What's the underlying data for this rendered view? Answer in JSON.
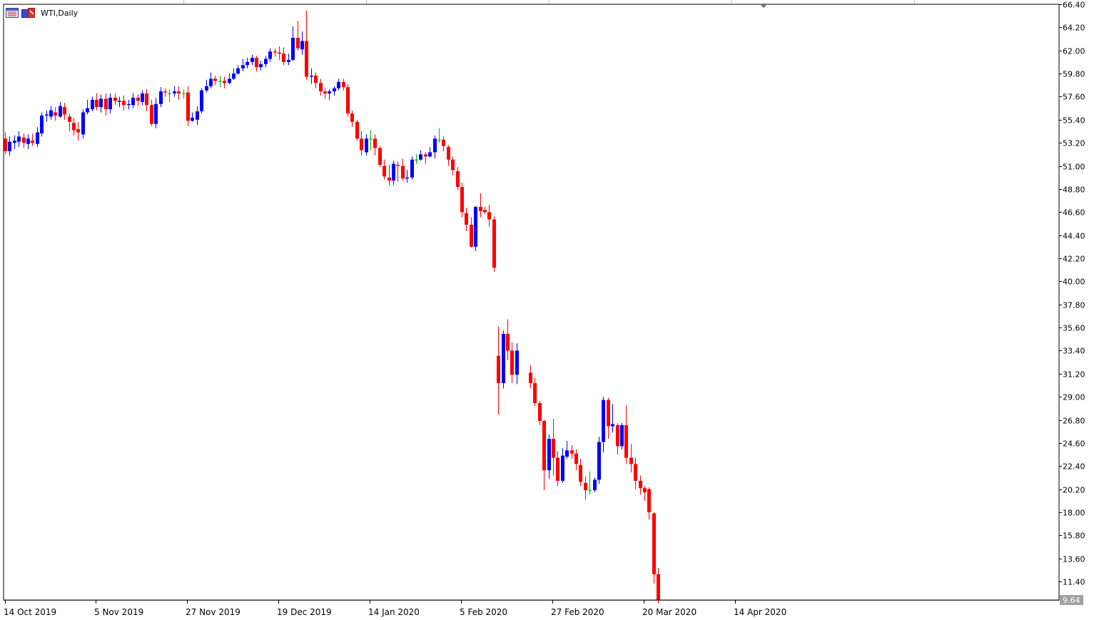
{
  "title_bar": {
    "symbol_label": "WTI,Daily",
    "icons": [
      "window-list-icon",
      "chart-type-icon"
    ]
  },
  "colors": {
    "bull": "#0000ff",
    "bear": "#ff0000",
    "doji": "#00b000",
    "grid": "#c0c0c0",
    "axis": "#000000",
    "price_tag_bg": "#a0a0a0",
    "price_tag_text": "#ffffff"
  },
  "chart_data": {
    "type": "candlestick",
    "title": "WTI,Daily",
    "ylim": [
      9.64,
      66.4
    ],
    "y_ticks": [
      "66.40",
      "64.20",
      "62.00",
      "59.80",
      "57.60",
      "55.40",
      "53.20",
      "51.00",
      "48.80",
      "46.60",
      "44.40",
      "42.20",
      "40.00",
      "37.80",
      "35.60",
      "33.40",
      "31.20",
      "29.00",
      "26.80",
      "24.60",
      "22.40",
      "20.20",
      "18.00",
      "15.80",
      "13.60",
      "11.40"
    ],
    "x_ticks": [
      "14 Oct 2019",
      "5 Nov 2019",
      "27 Nov 2019",
      "19 Dec 2019",
      "14 Jan 2020",
      "5 Feb 2020",
      "27 Feb 2020",
      "20 Mar 2020",
      "14 Apr 2020"
    ],
    "current_price_label": "9.64",
    "candles": [
      [
        53.6,
        52.4,
        54.2,
        52.1
      ],
      [
        52.4,
        53.3,
        53.8,
        52.0
      ],
      [
        53.2,
        53.4,
        53.9,
        52.6
      ],
      [
        53.3,
        53.8,
        54.3,
        52.8
      ],
      [
        53.7,
        53.2,
        54.1,
        52.7
      ],
      [
        53.1,
        53.6,
        54.0,
        52.6
      ],
      [
        53.4,
        53.2,
        54.1,
        52.9
      ],
      [
        53.1,
        54.2,
        54.7,
        52.8
      ],
      [
        54.1,
        55.8,
        56.1,
        53.8
      ],
      [
        55.8,
        55.9,
        56.3,
        55.2
      ],
      [
        55.7,
        56.3,
        56.7,
        55.4
      ],
      [
        56.1,
        55.8,
        56.6,
        55.3
      ],
      [
        55.7,
        56.7,
        57.1,
        55.6
      ],
      [
        56.6,
        55.9,
        57.0,
        55.4
      ],
      [
        55.7,
        55.2,
        56.0,
        54.3
      ],
      [
        55.1,
        54.4,
        55.6,
        53.9
      ],
      [
        54.5,
        54.2,
        55.2,
        53.4
      ],
      [
        54.0,
        56.1,
        56.4,
        53.6
      ],
      [
        56.1,
        56.5,
        57.3,
        55.9
      ],
      [
        56.4,
        57.3,
        57.6,
        56.2
      ],
      [
        57.3,
        56.6,
        57.9,
        56.3
      ],
      [
        56.6,
        57.4,
        57.8,
        56.1
      ],
      [
        57.4,
        56.4,
        57.9,
        55.8
      ],
      [
        56.4,
        57.5,
        57.9,
        56.0
      ],
      [
        57.5,
        57.2,
        57.9,
        56.8
      ],
      [
        57.1,
        57.2,
        57.6,
        56.6
      ],
      [
        57.2,
        56.8,
        57.7,
        56.3
      ],
      [
        56.8,
        56.9,
        57.3,
        56.4
      ],
      [
        56.8,
        57.5,
        57.9,
        56.5
      ],
      [
        57.5,
        57.2,
        57.8,
        56.7
      ],
      [
        57.1,
        57.9,
        58.2,
        56.8
      ],
      [
        57.9,
        56.8,
        58.3,
        56.2
      ],
      [
        56.8,
        55.0,
        57.3,
        54.8
      ],
      [
        55.0,
        56.9,
        57.5,
        54.6
      ],
      [
        56.9,
        58.1,
        58.5,
        56.6
      ],
      [
        58.1,
        58.0,
        58.4,
        57.6
      ],
      [
        57.9,
        57.9,
        58.3,
        57.1
      ],
      [
        57.9,
        58.1,
        58.6,
        57.6
      ],
      [
        58.1,
        57.9,
        58.6,
        57.3
      ],
      [
        57.9,
        57.9,
        58.3,
        57.4
      ],
      [
        58.0,
        55.3,
        58.6,
        54.8
      ],
      [
        55.3,
        55.6,
        56.1,
        55.2
      ],
      [
        55.4,
        56.2,
        56.7,
        54.9
      ],
      [
        56.2,
        58.2,
        58.4,
        56.0
      ],
      [
        58.2,
        58.6,
        59.2,
        58.0
      ],
      [
        58.6,
        59.3,
        59.9,
        58.4
      ],
      [
        59.3,
        59.1,
        59.6,
        58.7
      ],
      [
        59.1,
        59.1,
        59.6,
        58.5
      ],
      [
        59.1,
        58.9,
        59.5,
        58.4
      ],
      [
        58.9,
        59.3,
        59.8,
        58.8
      ],
      [
        59.3,
        59.8,
        60.3,
        59.2
      ],
      [
        59.8,
        60.3,
        60.6,
        59.7
      ],
      [
        60.3,
        60.6,
        61.2,
        60.0
      ],
      [
        60.6,
        60.9,
        61.3,
        60.3
      ],
      [
        60.9,
        61.3,
        61.6,
        60.6
      ],
      [
        61.3,
        60.4,
        61.5,
        60.0
      ],
      [
        60.4,
        60.7,
        61.0,
        60.1
      ],
      [
        60.7,
        61.2,
        61.5,
        60.4
      ],
      [
        61.2,
        61.9,
        62.2,
        60.9
      ],
      [
        61.9,
        61.8,
        62.2,
        61.4
      ],
      [
        61.8,
        61.7,
        62.4,
        61.1
      ],
      [
        61.7,
        60.9,
        62.3,
        60.6
      ],
      [
        60.9,
        61.1,
        61.7,
        60.6
      ],
      [
        61.1,
        63.2,
        64.3,
        61.0
      ],
      [
        63.2,
        62.2,
        64.8,
        62.0
      ],
      [
        62.1,
        62.9,
        63.8,
        61.6
      ],
      [
        62.9,
        59.5,
        65.8,
        59.2
      ],
      [
        59.5,
        59.6,
        60.3,
        58.8
      ],
      [
        59.6,
        58.9,
        59.9,
        58.4
      ],
      [
        58.9,
        58.1,
        59.3,
        57.7
      ],
      [
        58.1,
        57.9,
        58.4,
        57.4
      ],
      [
        57.9,
        58.1,
        58.3,
        57.3
      ],
      [
        58.1,
        58.4,
        58.6,
        57.7
      ],
      [
        58.4,
        59.0,
        59.3,
        58.2
      ],
      [
        59.0,
        58.5,
        59.3,
        58.2
      ],
      [
        58.5,
        56.0,
        58.8,
        55.7
      ],
      [
        56.0,
        55.2,
        56.3,
        54.7
      ],
      [
        55.2,
        53.6,
        55.4,
        53.4
      ],
      [
        53.6,
        52.5,
        54.3,
        52.0
      ],
      [
        52.3,
        53.6,
        54.0,
        52.0
      ],
      [
        53.6,
        53.6,
        54.4,
        52.5
      ],
      [
        53.6,
        52.7,
        54.0,
        52.0
      ],
      [
        52.7,
        51.1,
        52.9,
        50.9
      ],
      [
        51.0,
        50.0,
        51.6,
        49.7
      ],
      [
        49.9,
        49.6,
        51.1,
        49.1
      ],
      [
        49.6,
        51.2,
        51.5,
        49.2
      ],
      [
        51.1,
        51.0,
        51.4,
        49.5
      ],
      [
        51.0,
        49.8,
        51.7,
        49.6
      ],
      [
        49.8,
        49.9,
        50.6,
        49.4
      ],
      [
        49.9,
        51.6,
        51.9,
        49.7
      ],
      [
        51.6,
        51.6,
        52.1,
        51.2
      ],
      [
        51.6,
        52.1,
        52.5,
        51.5
      ],
      [
        52.1,
        51.9,
        52.3,
        51.2
      ],
      [
        51.9,
        52.3,
        52.8,
        51.8
      ],
      [
        52.3,
        53.6,
        53.9,
        51.7
      ],
      [
        53.5,
        53.5,
        54.6,
        53.2
      ],
      [
        53.5,
        52.9,
        53.8,
        52.4
      ],
      [
        52.8,
        51.6,
        53.0,
        51.0
      ],
      [
        51.6,
        50.6,
        51.9,
        50.1
      ],
      [
        50.5,
        49.0,
        50.9,
        48.7
      ],
      [
        49.0,
        46.6,
        49.4,
        46.1
      ],
      [
        46.5,
        45.4,
        47.0,
        44.8
      ],
      [
        45.4,
        43.3,
        46.1,
        43.2
      ],
      [
        43.3,
        47.1,
        47.2,
        42.9
      ],
      [
        47.1,
        46.7,
        48.4,
        46.1
      ],
      [
        46.8,
        46.6,
        47.1,
        46.4
      ],
      [
        46.6,
        45.9,
        47.3,
        45.2
      ],
      [
        45.9,
        41.3,
        46.2,
        40.9
      ],
      [
        32.9,
        30.3,
        35.7,
        27.3
      ],
      [
        30.3,
        35.0,
        35.3,
        29.8
      ],
      [
        35.0,
        33.4,
        36.4,
        32.5
      ],
      [
        33.4,
        31.1,
        34.2,
        30.3
      ],
      [
        31.1,
        33.4,
        34.1,
        30.2
      ],
      [
        31.3,
        30.3,
        32.0,
        29.8
      ],
      [
        30.3,
        28.4,
        30.8,
        28.1
      ],
      [
        28.4,
        26.7,
        28.6,
        26.3
      ],
      [
        26.7,
        22.0,
        26.8,
        20.1
      ],
      [
        22.0,
        25.0,
        25.4,
        21.2
      ],
      [
        25.0,
        23.2,
        26.9,
        21.5
      ],
      [
        23.2,
        21.0,
        23.8,
        20.5
      ],
      [
        21.0,
        23.4,
        24.1,
        20.8
      ],
      [
        23.3,
        23.9,
        24.8,
        23.1
      ],
      [
        23.9,
        23.6,
        24.4,
        23.1
      ],
      [
        23.6,
        22.6,
        24.0,
        22.0
      ],
      [
        22.5,
        20.9,
        23.1,
        20.5
      ],
      [
        20.8,
        20.1,
        21.4,
        19.2
      ],
      [
        20.1,
        20.1,
        21.9,
        19.7
      ],
      [
        20.1,
        21.1,
        21.3,
        19.9
      ],
      [
        21.1,
        24.7,
        25.2,
        20.7
      ],
      [
        24.7,
        28.7,
        29.0,
        23.7
      ],
      [
        28.7,
        26.2,
        28.9,
        25.0
      ],
      [
        26.2,
        26.4,
        28.3,
        25.6
      ],
      [
        26.3,
        24.3,
        26.5,
        23.5
      ],
      [
        24.3,
        26.3,
        26.5,
        24.0
      ],
      [
        26.3,
        23.2,
        28.2,
        22.6
      ],
      [
        23.2,
        22.6,
        24.5,
        21.8
      ],
      [
        22.6,
        21.0,
        23.2,
        20.2
      ],
      [
        21.0,
        20.3,
        21.5,
        19.7
      ],
      [
        20.3,
        19.9,
        20.5,
        19.1
      ],
      [
        20.2,
        18.0,
        20.4,
        17.3
      ],
      [
        17.9,
        12.1,
        18.0,
        11.2
      ],
      [
        12.1,
        9.64,
        12.7,
        9.3
      ]
    ]
  }
}
